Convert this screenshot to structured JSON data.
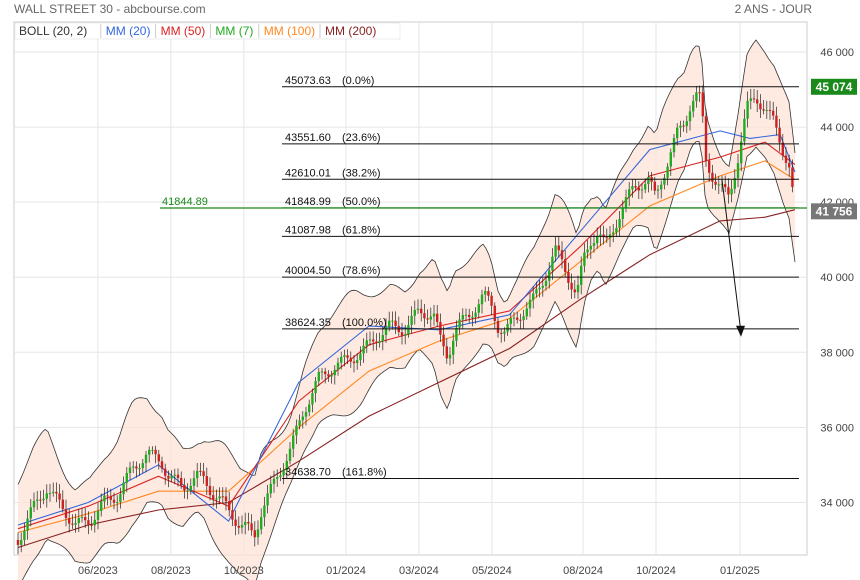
{
  "header": {
    "title": "WALL STREET 30 - abcbourse.com",
    "period": "2 ANS - JOUR"
  },
  "legend": [
    {
      "label": "BOLL (20, 2)",
      "color": "#333333"
    },
    {
      "label": "MM (20)",
      "color": "#3366dd"
    },
    {
      "label": "MM (50)",
      "color": "#dd2222"
    },
    {
      "label": "MM (7)",
      "color": "#22aa22"
    },
    {
      "label": "MM (100)",
      "color": "#ff8822"
    },
    {
      "label": "MM (200)",
      "color": "#882222"
    }
  ],
  "price_tags": [
    {
      "label": "45 074",
      "value": 45074,
      "color": "#1a8a1a"
    },
    {
      "label": "41 756",
      "value": 41756,
      "color": "#777777"
    }
  ],
  "reference_line": {
    "label": "41844.89",
    "value": 41844.89,
    "color": "#1a8a1a"
  },
  "fib_levels": [
    {
      "value": 45073.63,
      "label": "45073.63",
      "pct": "(0.0%)"
    },
    {
      "value": 43551.6,
      "label": "43551.60",
      "pct": "(23.6%)"
    },
    {
      "value": 42610.01,
      "label": "42610.01",
      "pct": "(38.2%)"
    },
    {
      "value": 41848.99,
      "label": "41848.99",
      "pct": "(50.0%)"
    },
    {
      "value": 41087.98,
      "label": "41087.98",
      "pct": "(61.8%)"
    },
    {
      "value": 40004.5,
      "label": "40004.50",
      "pct": "(78.6%)"
    },
    {
      "value": 38624.35,
      "label": "38624.35",
      "pct": "(100.0%)"
    },
    {
      "value": 34638.7,
      "label": "34638.70",
      "pct": "(161.8%)"
    }
  ],
  "chart_data": {
    "type": "candlestick",
    "ylim": [
      32600,
      46800
    ],
    "yticks": [
      {
        "value": 34000,
        "label": "34 000"
      },
      {
        "value": 36000,
        "label": "36 000"
      },
      {
        "value": 38000,
        "label": "38 000"
      },
      {
        "value": 40000,
        "label": "40 000"
      },
      {
        "value": 42000,
        "label": "42 000"
      },
      {
        "value": 44000,
        "label": "44 000"
      },
      {
        "value": 46000,
        "label": "46 000"
      }
    ],
    "xticks": [
      {
        "label": "06/2023",
        "pos": 0.115
      },
      {
        "label": "08/2023",
        "pos": 0.215
      },
      {
        "label": "10/2023",
        "pos": 0.315
      },
      {
        "label": "01/2024",
        "pos": 0.455
      },
      {
        "label": "03/2024",
        "pos": 0.555
      },
      {
        "label": "05/2024",
        "pos": 0.655
      },
      {
        "label": "08/2024",
        "pos": 0.78
      },
      {
        "label": "10/2024",
        "pos": 0.88
      },
      {
        "label": "01/2025",
        "pos": 0.995
      }
    ],
    "close_path": [
      [
        0.0,
        33000
      ],
      [
        0.02,
        33800
      ],
      [
        0.04,
        34400
      ],
      [
        0.06,
        33900
      ],
      [
        0.08,
        33400
      ],
      [
        0.1,
        33500
      ],
      [
        0.12,
        34000
      ],
      [
        0.14,
        34200
      ],
      [
        0.16,
        34900
      ],
      [
        0.18,
        35300
      ],
      [
        0.2,
        35100
      ],
      [
        0.21,
        34700
      ],
      [
        0.23,
        34400
      ],
      [
        0.25,
        34700
      ],
      [
        0.26,
        34600
      ],
      [
        0.27,
        34300
      ],
      [
        0.29,
        33900
      ],
      [
        0.31,
        33400
      ],
      [
        0.32,
        33300
      ],
      [
        0.33,
        33100
      ],
      [
        0.34,
        33800
      ],
      [
        0.36,
        34600
      ],
      [
        0.38,
        35400
      ],
      [
        0.4,
        36500
      ],
      [
        0.42,
        37300
      ],
      [
        0.44,
        37600
      ],
      [
        0.46,
        37800
      ],
      [
        0.48,
        38000
      ],
      [
        0.5,
        38400
      ],
      [
        0.52,
        38700
      ],
      [
        0.54,
        38600
      ],
      [
        0.56,
        39100
      ],
      [
        0.58,
        39000
      ],
      [
        0.59,
        38300
      ],
      [
        0.6,
        37900
      ],
      [
        0.61,
        38600
      ],
      [
        0.63,
        39000
      ],
      [
        0.65,
        39500
      ],
      [
        0.66,
        39300
      ],
      [
        0.67,
        38700
      ],
      [
        0.68,
        38500
      ],
      [
        0.69,
        38800
      ],
      [
        0.71,
        39200
      ],
      [
        0.72,
        39400
      ],
      [
        0.74,
        40200
      ],
      [
        0.75,
        40700
      ],
      [
        0.76,
        40400
      ],
      [
        0.78,
        39500
      ],
      [
        0.79,
        40500
      ],
      [
        0.8,
        41000
      ],
      [
        0.81,
        41200
      ],
      [
        0.82,
        40800
      ],
      [
        0.84,
        41700
      ],
      [
        0.86,
        42400
      ],
      [
        0.88,
        42600
      ],
      [
        0.89,
        42100
      ],
      [
        0.9,
        42700
      ],
      [
        0.92,
        43800
      ],
      [
        0.93,
        44100
      ],
      [
        0.94,
        44700
      ],
      [
        0.95,
        44900
      ],
      [
        0.955,
        44400
      ],
      [
        0.96,
        43100
      ],
      [
        0.97,
        42700
      ],
      [
        0.98,
        42400
      ]
    ],
    "close_path_b": [
      [
        0.0,
        42400
      ],
      [
        0.03,
        42100
      ],
      [
        0.06,
        43200
      ],
      [
        0.09,
        44500
      ],
      [
        0.12,
        44800
      ],
      [
        0.15,
        44500
      ],
      [
        0.18,
        44100
      ],
      [
        0.21,
        43400
      ],
      [
        0.23,
        43000
      ],
      [
        0.25,
        41756
      ]
    ],
    "ma200": [
      [
        0.0,
        32800
      ],
      [
        0.1,
        33400
      ],
      [
        0.2,
        33800
      ],
      [
        0.3,
        34000
      ],
      [
        0.4,
        35100
      ],
      [
        0.5,
        36300
      ],
      [
        0.6,
        37200
      ],
      [
        0.7,
        38100
      ],
      [
        0.8,
        39400
      ],
      [
        0.9,
        40600
      ],
      [
        1.0,
        41500
      ],
      [
        1.15,
        41600
      ],
      [
        1.25,
        41800
      ]
    ],
    "ma100": [
      [
        0.0,
        33200
      ],
      [
        0.1,
        33700
      ],
      [
        0.2,
        34300
      ],
      [
        0.3,
        34300
      ],
      [
        0.4,
        36000
      ],
      [
        0.5,
        37500
      ],
      [
        0.6,
        38300
      ],
      [
        0.7,
        38900
      ],
      [
        0.8,
        40400
      ],
      [
        0.9,
        41900
      ],
      [
        1.0,
        42700
      ],
      [
        1.15,
        43100
      ],
      [
        1.25,
        42600
      ]
    ],
    "ma50": [
      [
        0.0,
        33300
      ],
      [
        0.1,
        33900
      ],
      [
        0.2,
        34700
      ],
      [
        0.3,
        33900
      ],
      [
        0.4,
        36700
      ],
      [
        0.5,
        38200
      ],
      [
        0.6,
        38700
      ],
      [
        0.7,
        39100
      ],
      [
        0.8,
        40800
      ],
      [
        0.9,
        42700
      ],
      [
        1.0,
        43200
      ],
      [
        1.15,
        43600
      ],
      [
        1.25,
        43000
      ]
    ],
    "ma20": [
      [
        0.0,
        33400
      ],
      [
        0.1,
        34000
      ],
      [
        0.2,
        35000
      ],
      [
        0.3,
        33500
      ],
      [
        0.4,
        37200
      ],
      [
        0.5,
        38700
      ],
      [
        0.6,
        38600
      ],
      [
        0.7,
        39000
      ],
      [
        0.8,
        41200
      ],
      [
        0.9,
        43400
      ],
      [
        1.0,
        43900
      ],
      [
        1.1,
        43700
      ],
      [
        1.2,
        43800
      ],
      [
        1.25,
        42800
      ]
    ],
    "boll_upper_offset": 1300,
    "boll_lower_offset": 1200
  }
}
